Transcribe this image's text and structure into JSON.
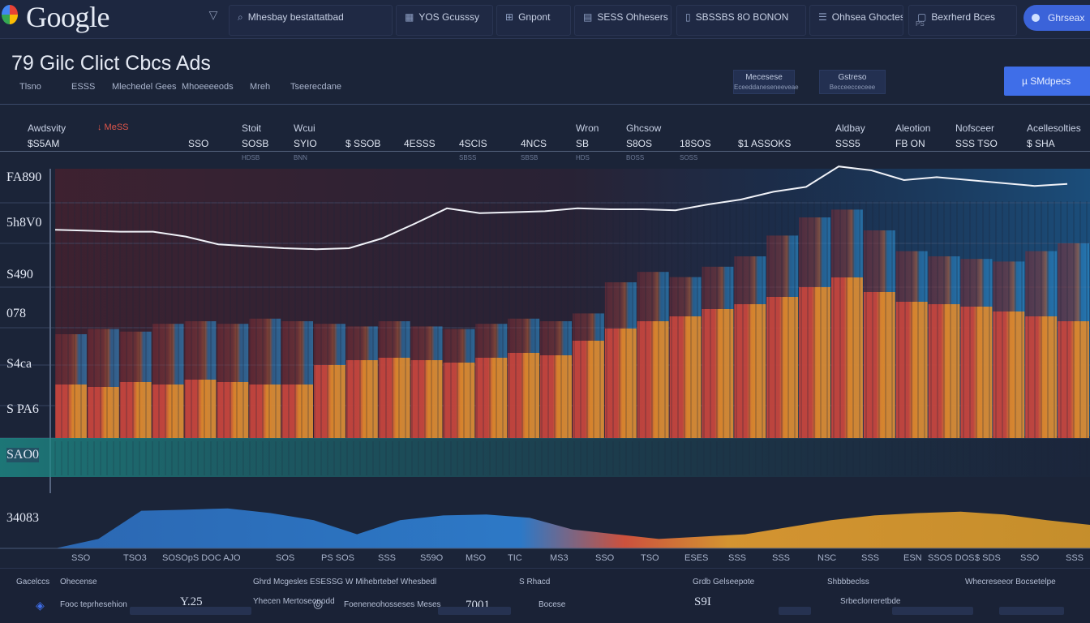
{
  "header": {
    "logo_text": "Google",
    "tabs": [
      {
        "icon": "search-icon",
        "label": "Mhesbay bestattatbad",
        "sub": ""
      },
      {
        "icon": "grid-icon",
        "label": "YOS Gcusssy",
        "sub": ""
      },
      {
        "icon": "chart-icon",
        "label": "Gnpont",
        "sub": ""
      },
      {
        "icon": "table-icon",
        "label": "SESS Ohhesers",
        "sub": ""
      },
      {
        "icon": "doc-icon",
        "label": "SBSSBS 8O BONON",
        "sub": ""
      },
      {
        "icon": "people-icon",
        "label": "Ohhsea Ghoctes",
        "sub": ""
      },
      {
        "icon": "file-icon",
        "label": "Bexrherd Bces",
        "sub": "PS"
      }
    ],
    "cta_label": "Ghrseax"
  },
  "page": {
    "title": "79 Gilc Clict Cbcs Ads",
    "subnav": [
      "Tlsno",
      "ESSS",
      "Mlechedel Gees",
      "Mhoeeeeods",
      "Mreh",
      "Tseerecdane"
    ],
    "meta": [
      {
        "label": "Mecesese",
        "sub": "Eceeddaneseneeveae"
      },
      {
        "label": "Gstreso",
        "sub": "Becceecceceee"
      }
    ],
    "main_cta": "µ SMdpecs"
  },
  "metrics_header": {
    "left_label": "Awdsvity",
    "left_value": "$S5AM",
    "change_label": "↓ MeSS",
    "columns": [
      {
        "head": "",
        "value": "SSO",
        "sub": ""
      },
      {
        "head": "Stoit",
        "value": "SOSB",
        "sub": "HDSB"
      },
      {
        "head": "Wcui",
        "value": "SYIO",
        "sub": "BNN"
      },
      {
        "head": "",
        "value": "$ SSOB",
        "sub": ""
      },
      {
        "head": "",
        "value": "4ESSS",
        "sub": ""
      },
      {
        "head": "",
        "value": "4SCIS",
        "sub": "SBSS"
      },
      {
        "head": "",
        "value": "4NCS",
        "sub": "SBSB"
      },
      {
        "head": "Wron",
        "value": "SB",
        "sub": "HDS"
      },
      {
        "head": "Ghcsow",
        "value": "S8OS",
        "sub": "BOSS"
      },
      {
        "head": "",
        "value": "18SOS",
        "sub": "SOSS"
      },
      {
        "head": "",
        "value": "$1 ASSOKS",
        "sub": ""
      },
      {
        "head": "Aldbay",
        "value": "SSS5",
        "sub": ""
      },
      {
        "head": "Aleotion",
        "value": "FB ON",
        "sub": ""
      },
      {
        "head": "Nofsceer",
        "value": "SSS TSO",
        "sub": ""
      },
      {
        "head": "Acellesolties",
        "value": "$ SHA",
        "sub": ""
      }
    ]
  },
  "chart_data": {
    "type": "area",
    "title": "",
    "y_tick_labels": [
      "FA890",
      "5h8V0",
      "S490",
      "078",
      "S4ca",
      "S PA6",
      "SAO0",
      "34083"
    ],
    "x_tick_labels": [
      "SSO",
      "TSO3",
      "SOSOpS DOC AJO",
      "SOS",
      "PS SOS",
      "SSS",
      "S59O",
      "MSO",
      "TIC",
      "MS3",
      "SSO",
      "TSO",
      "ESES",
      "SSS",
      "SSS",
      "NSC",
      "SSS",
      "ESN",
      "SSOS DOS",
      "$ SDS",
      "SSO",
      "SSS"
    ],
    "line_series": {
      "name": "",
      "values": [
        0.29,
        0.28,
        0.27,
        0.27,
        0.22,
        0.14,
        0.12,
        0.1,
        0.09,
        0.1,
        0.2,
        0.35,
        0.51,
        0.46,
        0.47,
        0.48,
        0.51,
        0.5,
        0.5,
        0.49,
        0.55,
        0.6,
        0.68,
        0.73,
        0.94,
        0.9,
        0.8,
        0.83,
        0.8,
        0.77,
        0.74,
        0.76
      ]
    },
    "bar_series_upper": {
      "name": "",
      "values": [
        0.4,
        0.42,
        0.41,
        0.44,
        0.45,
        0.44,
        0.46,
        0.45,
        0.44,
        0.43,
        0.45,
        0.43,
        0.42,
        0.44,
        0.46,
        0.45,
        0.48,
        0.6,
        0.64,
        0.62,
        0.66,
        0.7,
        0.78,
        0.85,
        0.88,
        0.8,
        0.72,
        0.7,
        0.69,
        0.68,
        0.72,
        0.75
      ]
    },
    "bar_series_lower": {
      "name": "",
      "values": [
        0.22,
        0.21,
        0.23,
        0.22,
        0.24,
        0.23,
        0.22,
        0.22,
        0.3,
        0.32,
        0.33,
        0.32,
        0.31,
        0.33,
        0.35,
        0.34,
        0.4,
        0.45,
        0.48,
        0.5,
        0.53,
        0.55,
        0.58,
        0.62,
        0.66,
        0.6,
        0.56,
        0.55,
        0.54,
        0.52,
        0.5,
        0.48
      ]
    },
    "lower_area": {
      "name": "",
      "values": [
        0.0,
        0.2,
        0.8,
        0.82,
        0.85,
        0.75,
        0.6,
        0.3,
        0.6,
        0.7,
        0.72,
        0.65,
        0.4,
        0.3,
        0.2,
        0.25,
        0.3,
        0.45,
        0.6,
        0.7,
        0.75,
        0.78,
        0.72,
        0.6,
        0.5
      ]
    },
    "colors": {
      "red": "#c8463e",
      "orange": "#e08a2c",
      "blue": "#2f8fd8",
      "teal": "#1e8f8a",
      "line": "#f0f2f8"
    },
    "grid": true
  },
  "footer": {
    "rows": [
      [
        {
          "label": "Gacelccs",
          "value": ""
        },
        {
          "label": "Ohecense",
          "value": ""
        },
        {
          "label": "Ghrd Mcgesles ESESSG",
          "value": ""
        },
        {
          "label": "W Mihebrtebef Whesbedl",
          "value": ""
        },
        {
          "label": "S Rhacd",
          "value": ""
        },
        {
          "label": "Grdb Gelseepote",
          "value": ""
        },
        {
          "label": "Shbbbeclss",
          "value": ""
        },
        {
          "label": "Whecreseeor Bocsetelpe",
          "value": ""
        }
      ],
      [
        {
          "label": "Fooc teprhesehion",
          "value": ""
        },
        {
          "label": "Yhecen Mertoseonodd",
          "value": "Y.25"
        },
        {
          "label": "Foeneneohosseses Meses",
          "value": ""
        },
        {
          "label": "Bocese",
          "value": "7001"
        },
        {
          "label": "",
          "value": "S9I"
        },
        {
          "label": "Srbeclorreretbde",
          "value": ""
        }
      ]
    ]
  }
}
